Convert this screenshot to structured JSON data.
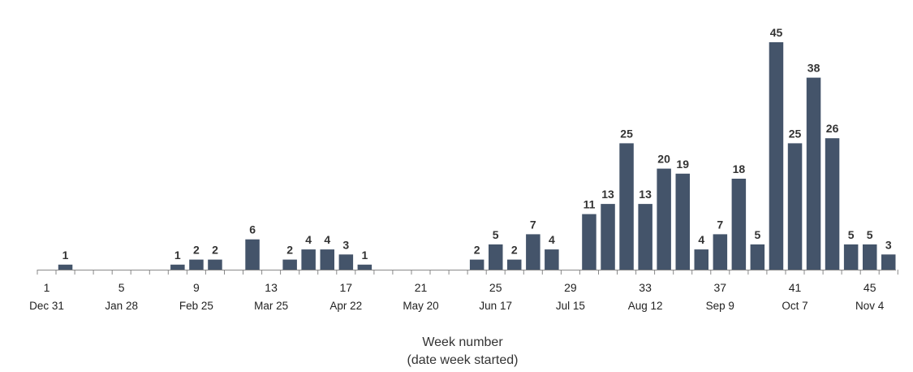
{
  "chart_data": {
    "type": "bar",
    "xlabel_line1": "Week number",
    "xlabel_line2": "(date week started)",
    "ylabel": "",
    "ylim": [
      0,
      45
    ],
    "grid": false,
    "bar_color": "#44546a",
    "x": [
      1,
      2,
      3,
      4,
      5,
      6,
      7,
      8,
      9,
      10,
      11,
      12,
      13,
      14,
      15,
      16,
      17,
      18,
      19,
      20,
      21,
      22,
      23,
      24,
      25,
      26,
      27,
      28,
      29,
      30,
      31,
      32,
      33,
      34,
      35,
      36,
      37,
      38,
      39,
      40,
      41,
      42,
      43,
      44,
      45,
      46
    ],
    "values": [
      0,
      1,
      0,
      0,
      0,
      0,
      0,
      1,
      2,
      2,
      0,
      6,
      0,
      2,
      4,
      4,
      3,
      1,
      0,
      0,
      0,
      0,
      0,
      2,
      5,
      2,
      7,
      4,
      0,
      11,
      13,
      25,
      13,
      20,
      19,
      4,
      7,
      18,
      5,
      45,
      25,
      38,
      26,
      5,
      5,
      3
    ],
    "ticks": [
      {
        "week": 1,
        "num": "1",
        "date": "Dec 31"
      },
      {
        "week": 5,
        "num": "5",
        "date": "Jan 28"
      },
      {
        "week": 9,
        "num": "9",
        "date": "Feb 25"
      },
      {
        "week": 13,
        "num": "13",
        "date": "Mar 25"
      },
      {
        "week": 17,
        "num": "17",
        "date": "Apr 22"
      },
      {
        "week": 21,
        "num": "21",
        "date": "May 20"
      },
      {
        "week": 25,
        "num": "25",
        "date": "Jun 17"
      },
      {
        "week": 29,
        "num": "29",
        "date": "Jul 15"
      },
      {
        "week": 33,
        "num": "33",
        "date": "Aug 12"
      },
      {
        "week": 37,
        "num": "37",
        "date": "Sep 9"
      },
      {
        "week": 41,
        "num": "41",
        "date": "Oct 7"
      },
      {
        "week": 45,
        "num": "45",
        "date": "Nov 4"
      }
    ]
  }
}
